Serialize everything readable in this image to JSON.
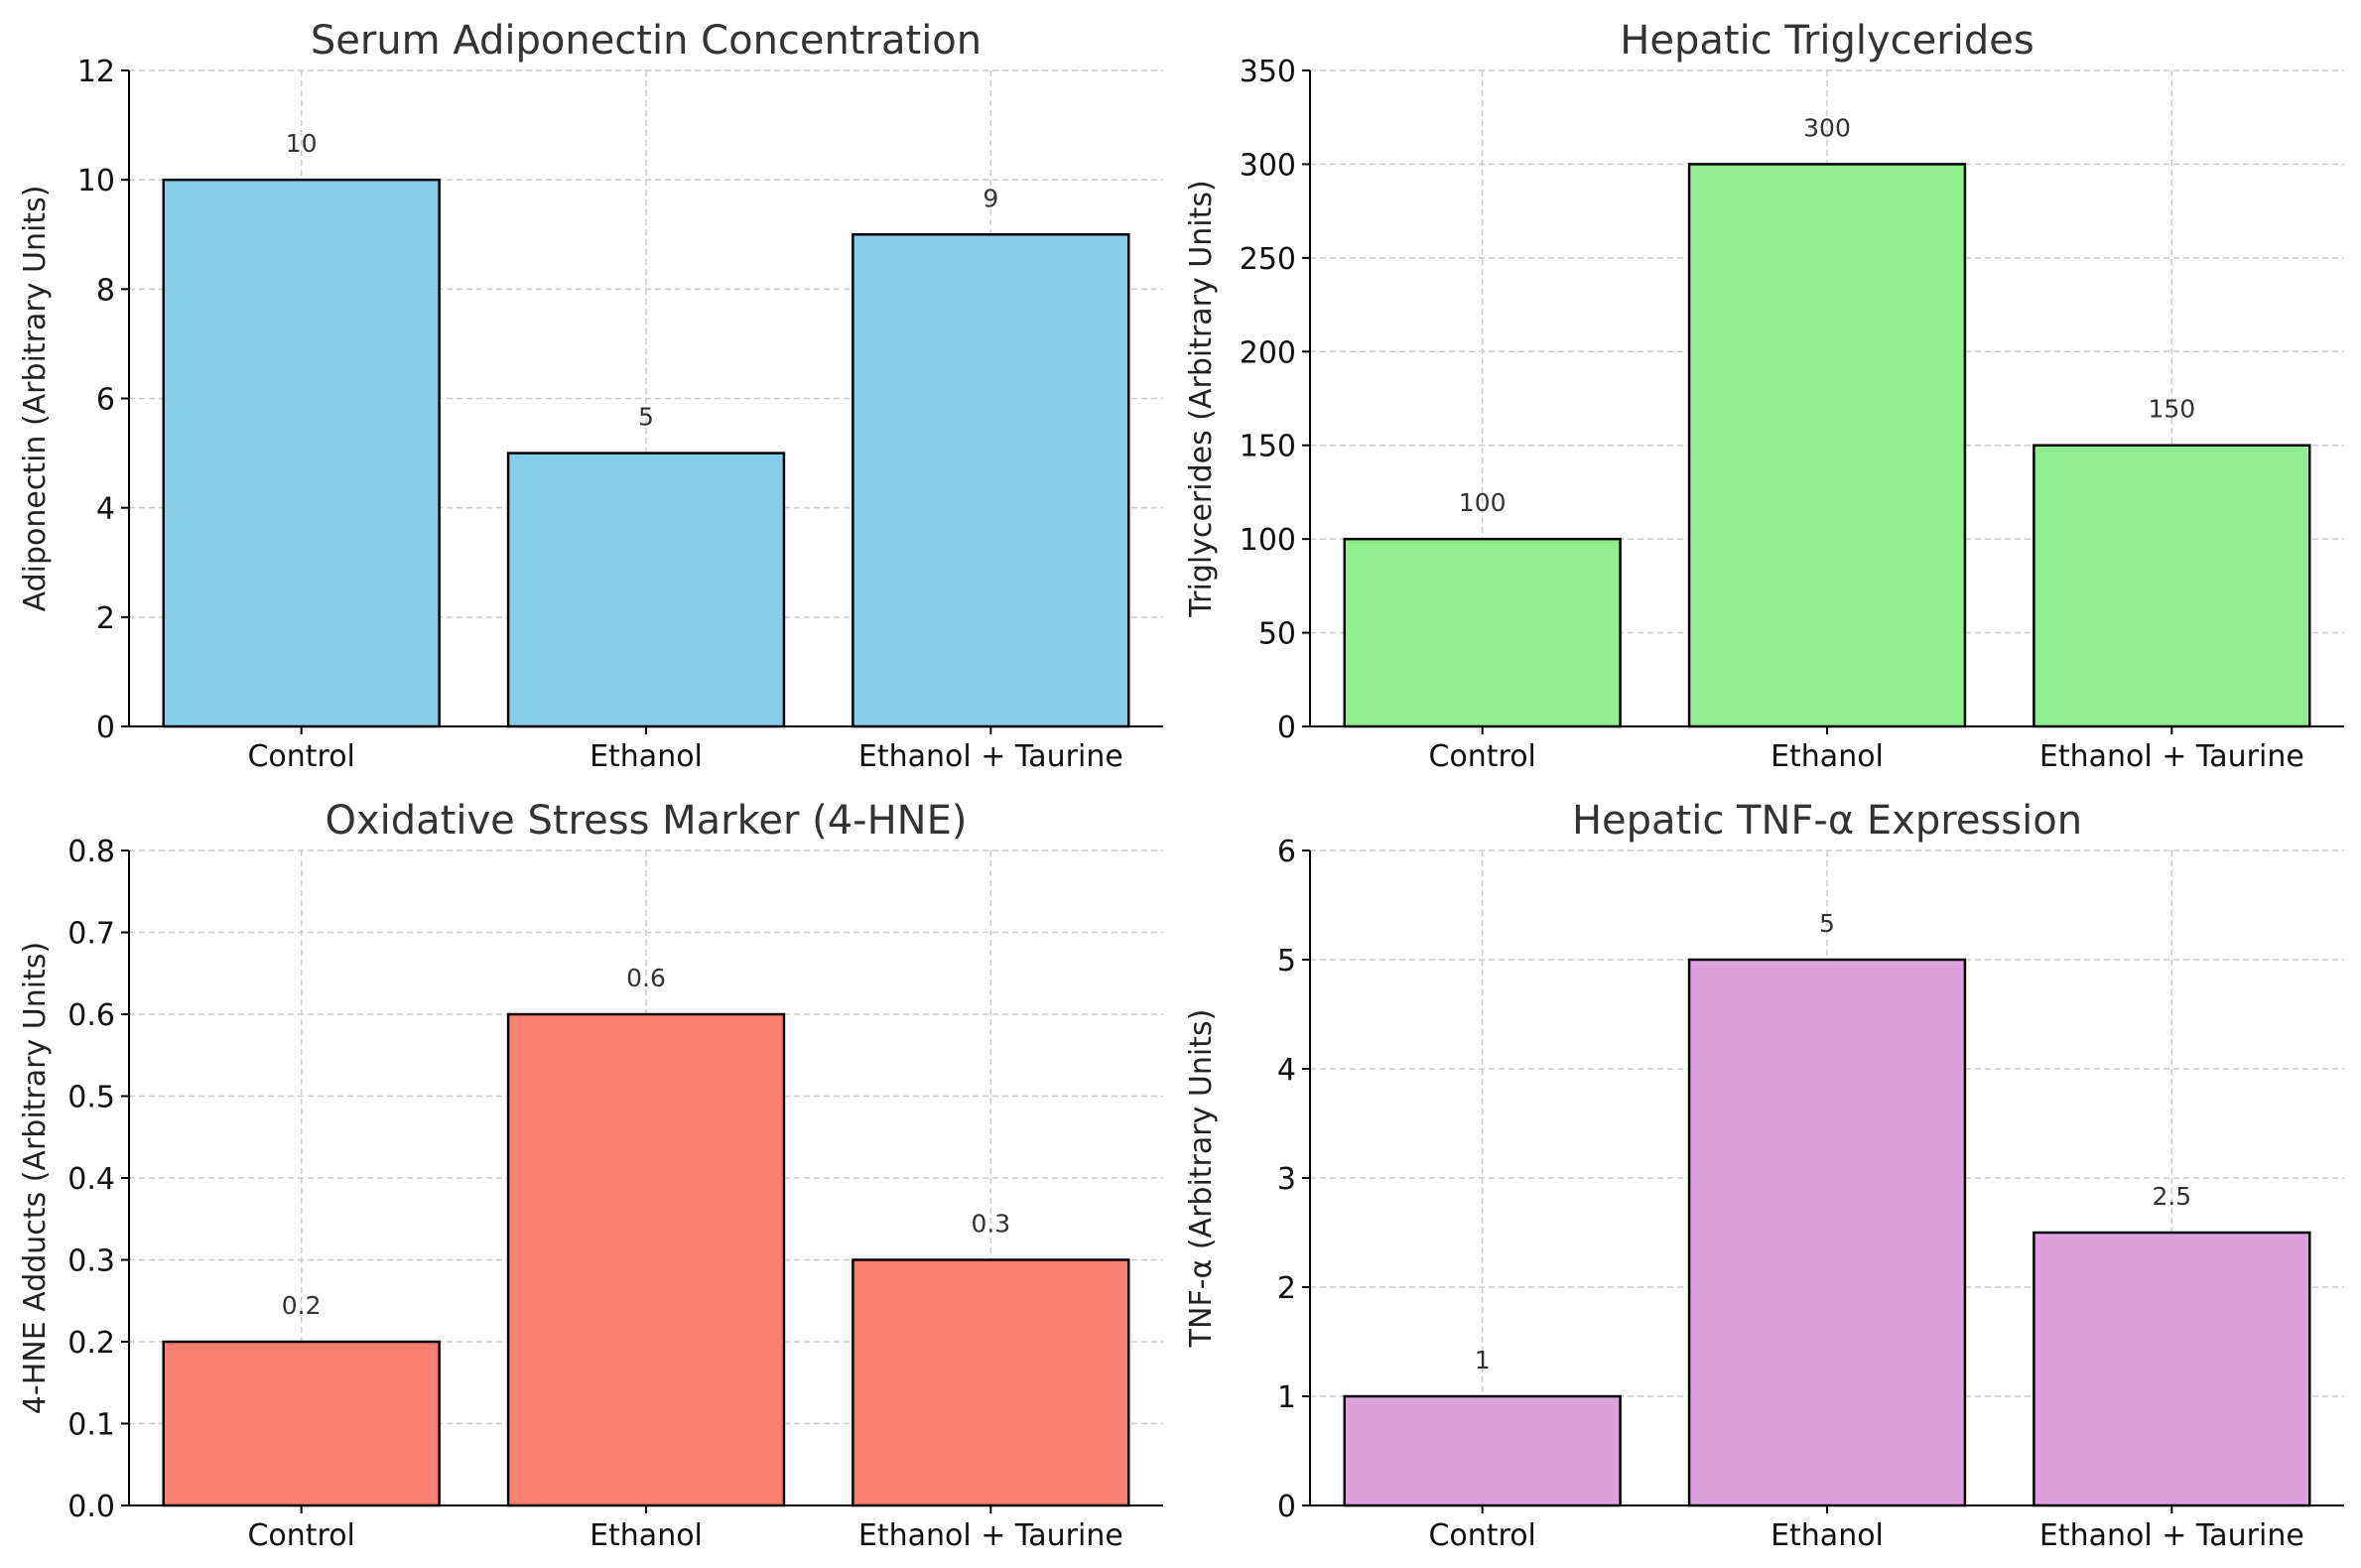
{
  "chart_data": [
    {
      "type": "bar",
      "title": "Serum Adiponectin Concentration",
      "xlabel": "",
      "ylabel": "Adiponectin (Arbitrary Units)",
      "categories": [
        "Control",
        "Ethanol",
        "Ethanol + Taurine"
      ],
      "values": [
        10,
        5,
        9
      ],
      "value_labels": [
        "10",
        "5",
        "9"
      ],
      "ylim": [
        0,
        12
      ],
      "yticks": [
        0,
        2,
        4,
        6,
        8,
        10,
        12
      ],
      "ytick_labels": [
        "0",
        "2",
        "4",
        "6",
        "8",
        "10",
        "12"
      ],
      "color": "#87ceeb",
      "grid": true
    },
    {
      "type": "bar",
      "title": "Hepatic Triglycerides",
      "xlabel": "",
      "ylabel": "Triglycerides (Arbitrary Units)",
      "categories": [
        "Control",
        "Ethanol",
        "Ethanol + Taurine"
      ],
      "values": [
        100,
        300,
        150
      ],
      "value_labels": [
        "100",
        "300",
        "150"
      ],
      "ylim": [
        0,
        350
      ],
      "yticks": [
        0,
        50,
        100,
        150,
        200,
        250,
        300,
        350
      ],
      "ytick_labels": [
        "0",
        "50",
        "100",
        "150",
        "200",
        "250",
        "300",
        "350"
      ],
      "color": "#90ee90",
      "grid": true
    },
    {
      "type": "bar",
      "title": "Oxidative Stress Marker (4-HNE)",
      "xlabel": "",
      "ylabel": "4-HNE Adducts (Arbitrary Units)",
      "categories": [
        "Control",
        "Ethanol",
        "Ethanol + Taurine"
      ],
      "values": [
        0.2,
        0.6,
        0.3
      ],
      "value_labels": [
        "0.2",
        "0.6",
        "0.3"
      ],
      "ylim": [
        0,
        0.8
      ],
      "yticks": [
        0,
        0.1,
        0.2,
        0.3,
        0.4,
        0.5,
        0.6,
        0.7,
        0.8
      ],
      "ytick_labels": [
        "0.0",
        "0.1",
        "0.2",
        "0.3",
        "0.4",
        "0.5",
        "0.6",
        "0.7",
        "0.8"
      ],
      "color": "#fa8072",
      "grid": true
    },
    {
      "type": "bar",
      "title": "Hepatic TNF-α Expression",
      "xlabel": "",
      "ylabel": "TNF-α (Arbitrary Units)",
      "categories": [
        "Control",
        "Ethanol",
        "Ethanol + Taurine"
      ],
      "values": [
        1,
        5,
        2.5
      ],
      "value_labels": [
        "1",
        "5",
        "2.5"
      ],
      "ylim": [
        0,
        6
      ],
      "yticks": [
        0,
        1,
        2,
        3,
        4,
        5,
        6
      ],
      "ytick_labels": [
        "0",
        "1",
        "2",
        "3",
        "4",
        "5",
        "6"
      ],
      "color": "#dda0dd",
      "grid": true
    }
  ]
}
